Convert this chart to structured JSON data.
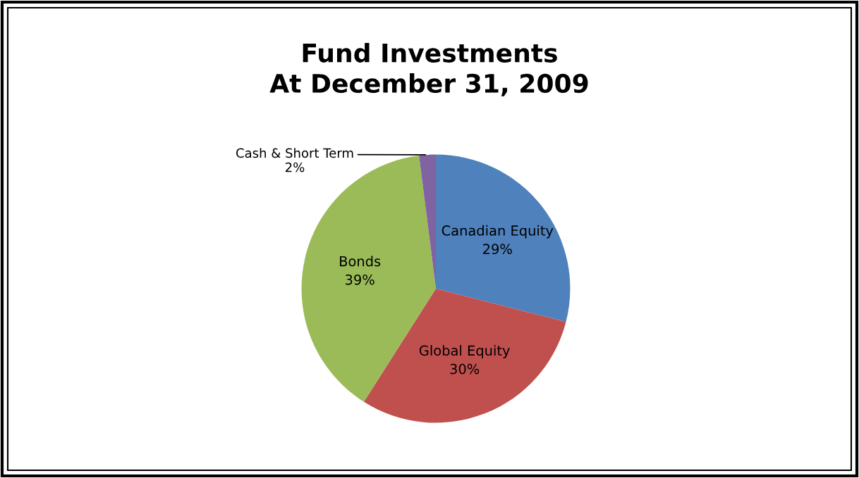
{
  "chart_data": {
    "type": "pie",
    "title": "Fund Investments\nAt December 31, 2009",
    "categories": [
      "Canadian Equity",
      "Global Equity",
      "Bonds",
      "Cash & Short Term"
    ],
    "values": [
      29,
      30,
      39,
      2
    ],
    "colors": [
      "#4f81bd",
      "#c0504d",
      "#9bbb59",
      "#8064a2"
    ],
    "value_labels": [
      "29%",
      "30%",
      "39%",
      "2%"
    ]
  }
}
